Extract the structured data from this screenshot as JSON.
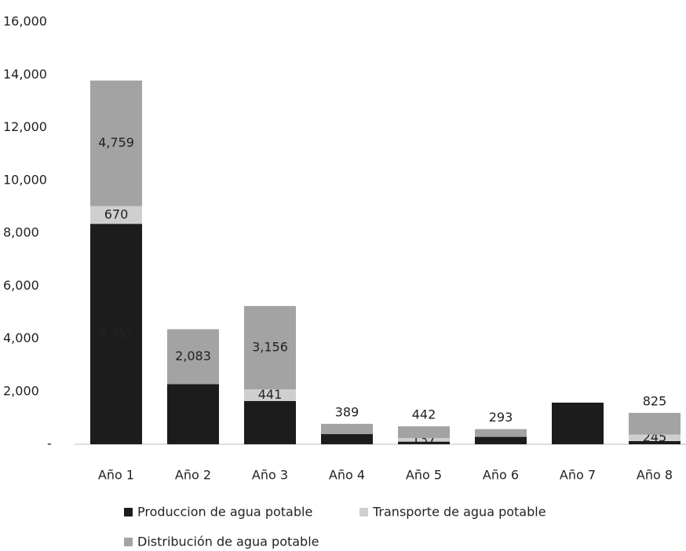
{
  "chart_data": {
    "type": "stacked_bar",
    "categories": [
      "Año 1",
      "Año 2",
      "Año 3",
      "Año 4",
      "Año 5",
      "Año 6",
      "Año 7",
      "Año 8"
    ],
    "series": [
      {
        "name": "Produccion de agua potable",
        "color": "#1c1c1c",
        "values": [
          8352,
          2276,
          1641,
          385,
          100,
          280,
          1577,
          120
        ],
        "value_labels": [
          "8,352",
          null,
          null,
          null,
          null,
          null,
          null,
          null
        ]
      },
      {
        "name": "Transporte de agua potable",
        "color": "#cfcfcf",
        "values": [
          670,
          0,
          441,
          0,
          137,
          0,
          0,
          245
        ],
        "value_labels": [
          "670",
          null,
          "441",
          null,
          "137",
          null,
          null,
          "245"
        ]
      },
      {
        "name": "Distribución de agua potable",
        "color": "#a3a3a3",
        "values": [
          4759,
          2083,
          3156,
          389,
          442,
          293,
          0,
          825
        ],
        "value_labels": [
          "4,759",
          "2,083",
          "3,156",
          "389",
          "442",
          "293",
          null,
          "825"
        ]
      }
    ],
    "ylim": [
      0,
      16000
    ],
    "yticks": [
      {
        "value": 0,
        "label": "-"
      },
      {
        "value": 2000,
        "label": "2,000"
      },
      {
        "value": 4000,
        "label": "4,000"
      },
      {
        "value": 6000,
        "label": "6,000"
      },
      {
        "value": 8000,
        "label": "8,000"
      },
      {
        "value": 10000,
        "label": "10,000"
      },
      {
        "value": 12000,
        "label": "12,000"
      },
      {
        "value": 14000,
        "label": "14,000"
      },
      {
        "value": 16000,
        "label": "16,000"
      }
    ],
    "grid": false
  }
}
